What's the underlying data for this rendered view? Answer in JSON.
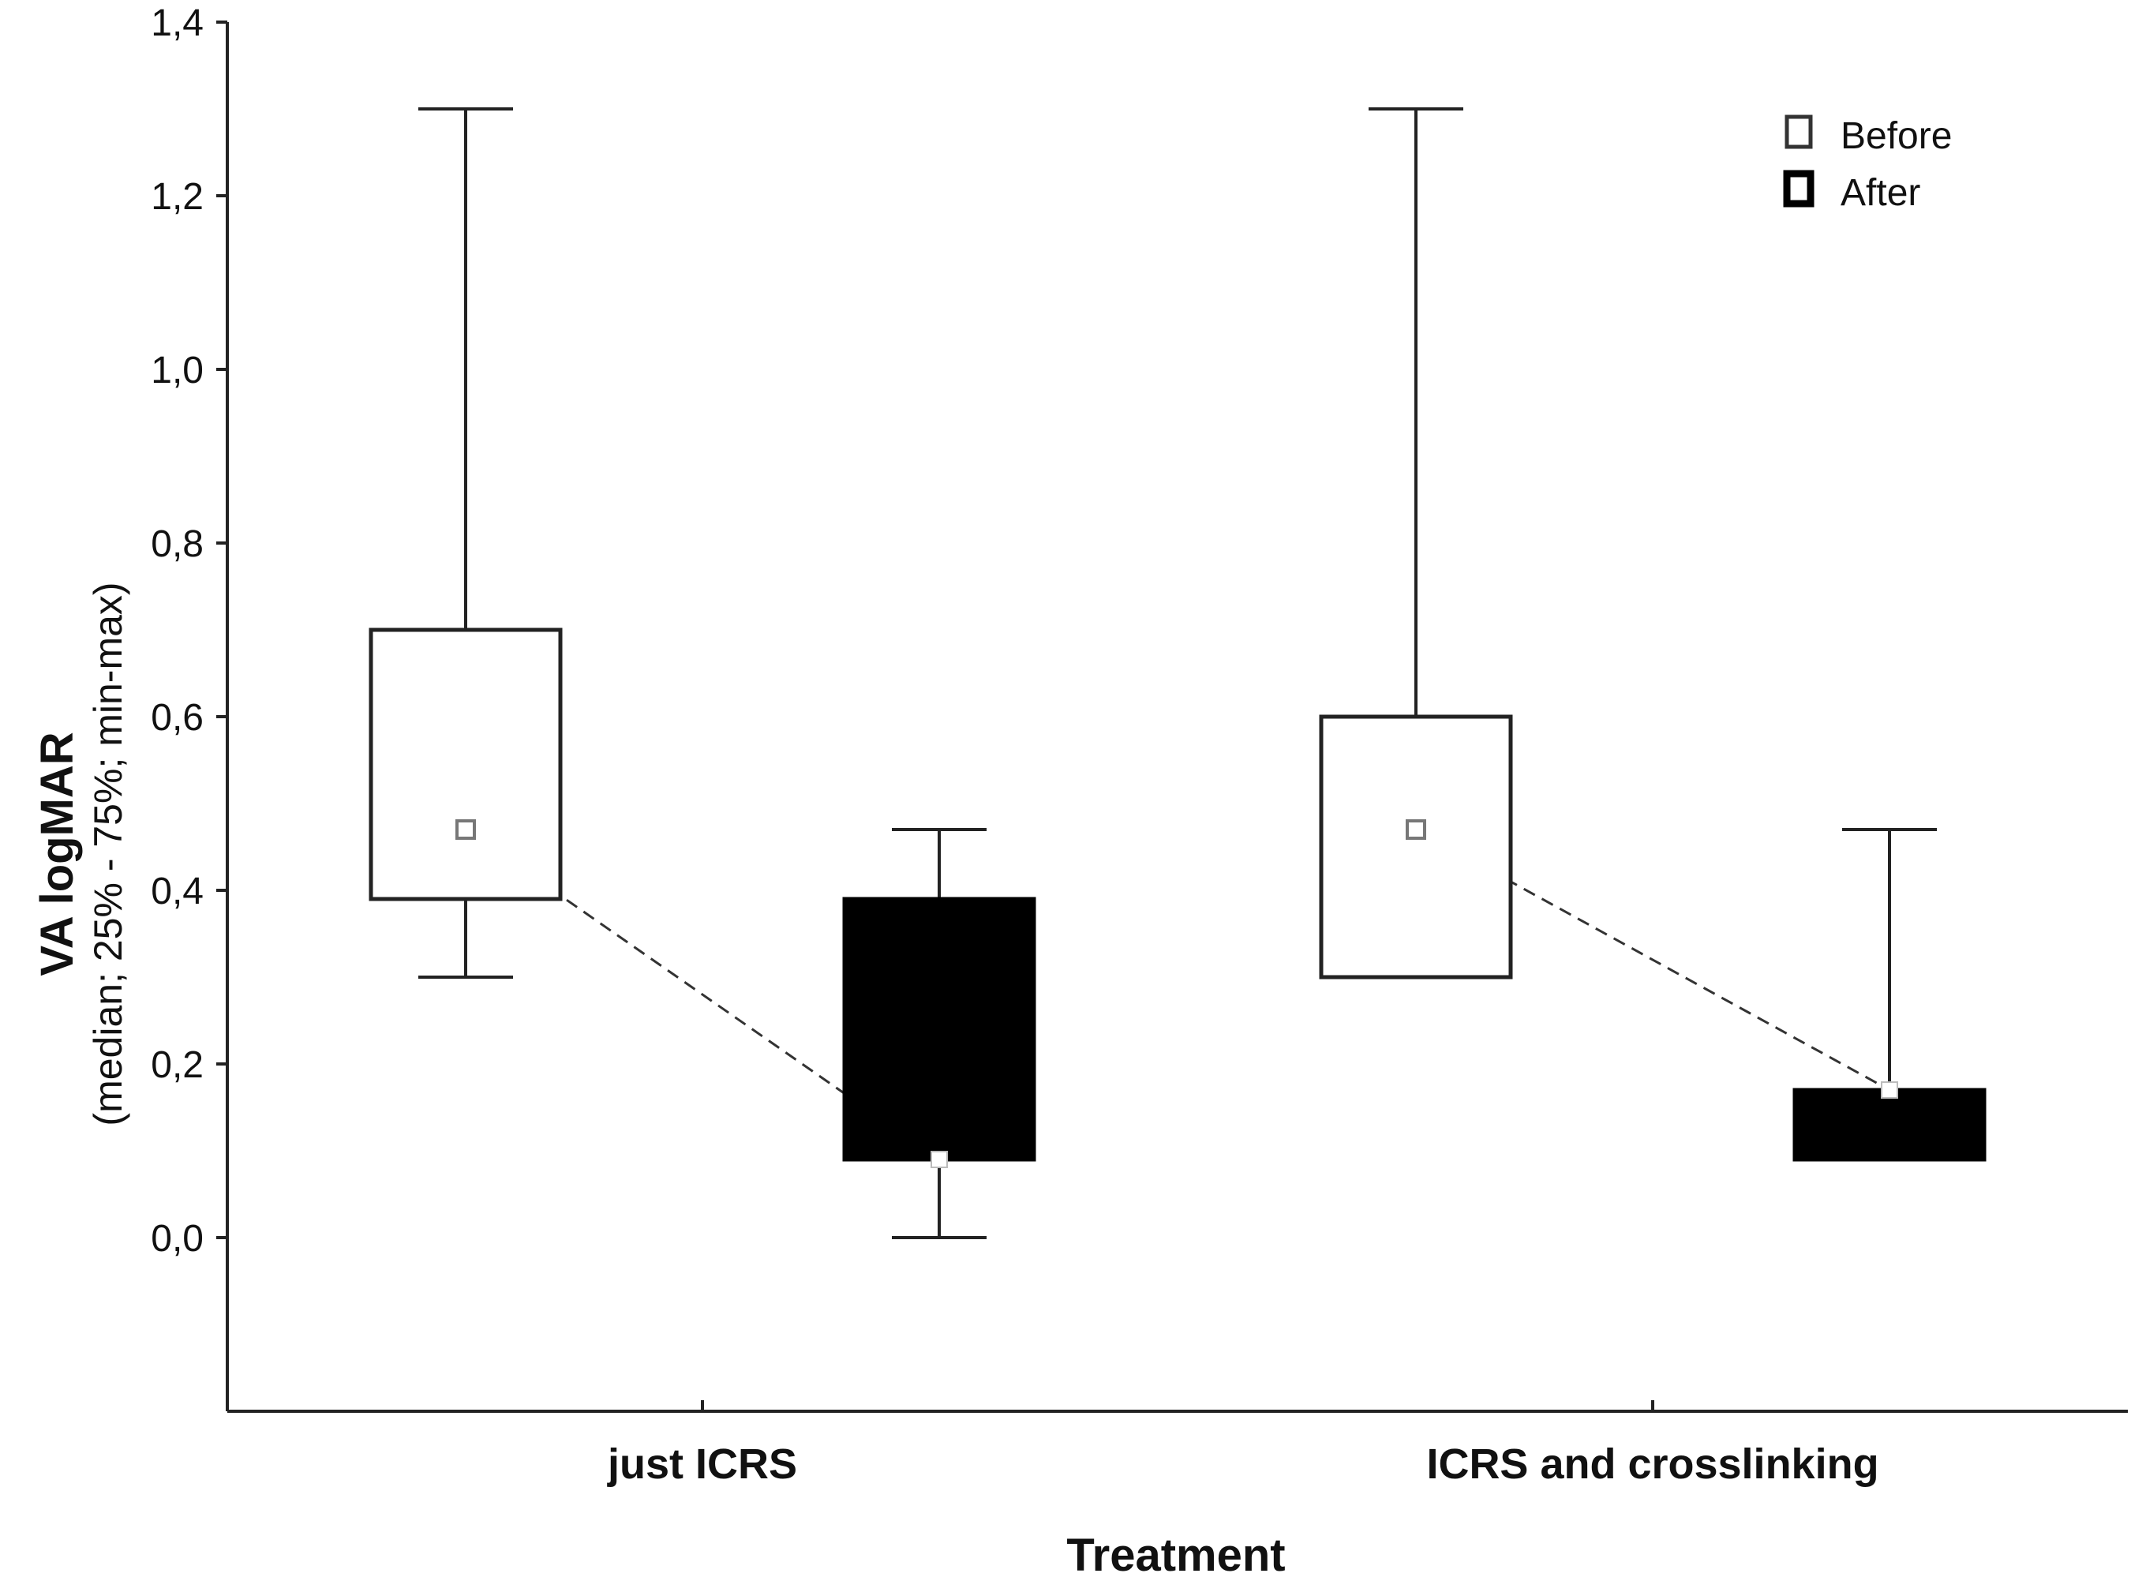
{
  "chart_data": {
    "type": "boxplot",
    "title": "",
    "xlabel": "Treatment",
    "ylabel": "VA logMAR",
    "ylabel_sub": "(median; 25% - 75%; min-max)",
    "ylim": [
      -0.2,
      1.4
    ],
    "yticks": [
      0.0,
      0.2,
      0.4,
      0.6,
      0.8,
      1.0,
      1.2,
      1.4
    ],
    "ytick_labels": [
      "0,0",
      "0,2",
      "0,4",
      "0,6",
      "0,8",
      "1,0",
      "1,2",
      "1,4"
    ],
    "categories": [
      "just ICRS",
      "ICRS and crosslinking"
    ],
    "legend_position": "top-right",
    "series": [
      {
        "name": "Before",
        "fill": "#ffffff",
        "stroke": "#222222",
        "boxes": [
          {
            "min": 0.3,
            "q1": 0.39,
            "median": 0.47,
            "q3": 0.7,
            "max": 1.3
          },
          {
            "min": 0.3,
            "q1": 0.3,
            "median": 0.47,
            "q3": 0.6,
            "max": 1.3
          }
        ]
      },
      {
        "name": "After",
        "fill": "#000000",
        "stroke": "#000000",
        "boxes": [
          {
            "min": 0.0,
            "q1": 0.09,
            "median": 0.09,
            "q3": 0.39,
            "max": 0.47
          },
          {
            "min": 0.09,
            "q1": 0.09,
            "median": 0.17,
            "q3": 0.17,
            "max": 0.47
          }
        ]
      }
    ],
    "connect_medians": true
  }
}
